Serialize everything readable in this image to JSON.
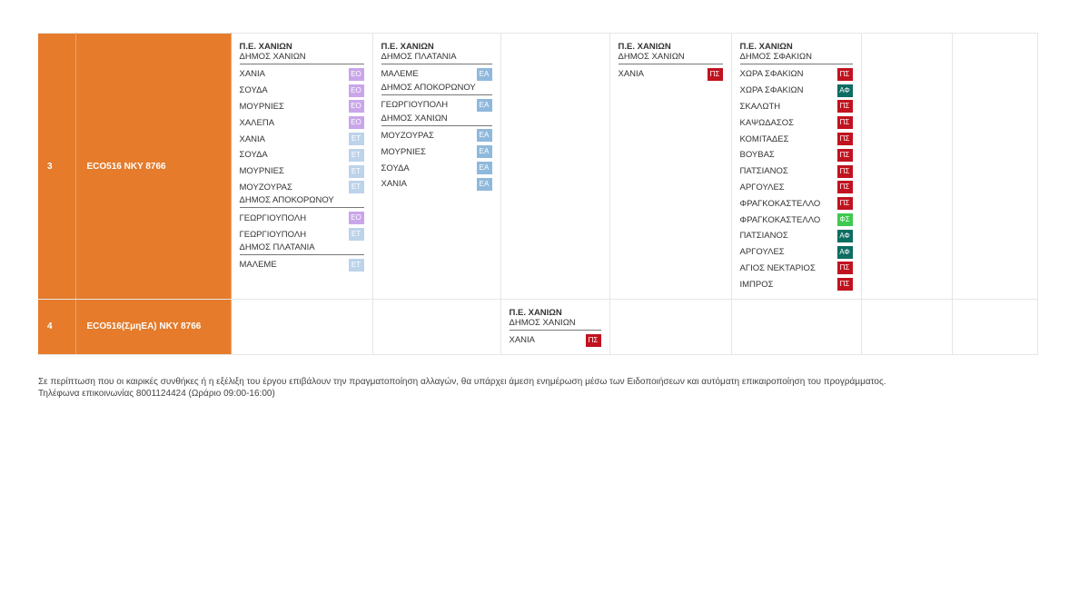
{
  "colors": {
    "row_header": "#e57b2b",
    "EO": "#c9a6ea",
    "ET": "#bcd3ea",
    "EA": "#8fb9dc",
    "PS": "#c1121f",
    "AF": "#0c6d62",
    "FS": "#3ec94f"
  },
  "rows": [
    {
      "num": "3",
      "code": "ECO516  NKY 8766",
      "cells": [
        {
          "pe": "Π.Ε. ΧΑΝΙΩΝ",
          "groups": [
            {
              "dimos": "ΔΗΜΟΣ ΧΑΝΙΩΝ",
              "items": [
                {
                  "name": "ΧΑΝΙΑ",
                  "badge": "ΕΟ"
                },
                {
                  "name": "ΣΟΥΔΑ",
                  "badge": "ΕΟ"
                },
                {
                  "name": "ΜΟΥΡΝΙΕΣ",
                  "badge": "ΕΟ"
                },
                {
                  "name": "ΧΑΛΕΠΑ",
                  "badge": "ΕΟ"
                },
                {
                  "name": "ΧΑΝΙΑ",
                  "badge": "ΕΤ"
                },
                {
                  "name": "ΣΟΥΔΑ",
                  "badge": "ΕΤ"
                },
                {
                  "name": "ΜΟΥΡΝΙΕΣ",
                  "badge": "ΕΤ"
                },
                {
                  "name": "ΜΟΥΖΟΥΡΑΣ",
                  "badge": "ΕΤ"
                }
              ]
            },
            {
              "dimos": "ΔΗΜΟΣ ΑΠΟΚΟΡΩΝΟΥ",
              "items": [
                {
                  "name": "ΓΕΩΡΓΙΟΥΠΟΛΗ",
                  "badge": "ΕΟ"
                },
                {
                  "name": "ΓΕΩΡΓΙΟΥΠΟΛΗ",
                  "badge": "ΕΤ"
                }
              ]
            },
            {
              "dimos": "ΔΗΜΟΣ ΠΛΑΤΑΝΙΑ",
              "items": [
                {
                  "name": "ΜΑΛΕΜΕ",
                  "badge": "ΕΤ"
                }
              ]
            }
          ]
        },
        {
          "pe": "Π.Ε. ΧΑΝΙΩΝ",
          "groups": [
            {
              "dimos": "ΔΗΜΟΣ ΠΛΑΤΑΝΙΑ",
              "items": [
                {
                  "name": "ΜΑΛΕΜΕ",
                  "badge": "ΕΑ"
                }
              ]
            },
            {
              "dimos": "ΔΗΜΟΣ ΑΠΟΚΟΡΩΝΟΥ",
              "items": [
                {
                  "name": "ΓΕΩΡΓΙΟΥΠΟΛΗ",
                  "badge": "ΕΑ"
                }
              ]
            },
            {
              "dimos": "ΔΗΜΟΣ ΧΑΝΙΩΝ",
              "items": [
                {
                  "name": "ΜΟΥΖΟΥΡΑΣ",
                  "badge": "ΕΑ"
                },
                {
                  "name": "ΜΟΥΡΝΙΕΣ",
                  "badge": "ΕΑ"
                },
                {
                  "name": "ΣΟΥΔΑ",
                  "badge": "ΕΑ"
                },
                {
                  "name": "ΧΑΝΙΑ",
                  "badge": "ΕΑ"
                }
              ]
            }
          ]
        },
        null,
        {
          "pe": "Π.Ε. ΧΑΝΙΩΝ",
          "groups": [
            {
              "dimos": "ΔΗΜΟΣ ΧΑΝΙΩΝ",
              "items": [
                {
                  "name": "ΧΑΝΙΑ",
                  "badge": "ΠΣ"
                }
              ]
            }
          ]
        },
        {
          "pe": "Π.Ε. ΧΑΝΙΩΝ",
          "groups": [
            {
              "dimos": "ΔΗΜΟΣ ΣΦΑΚΙΩΝ",
              "items": [
                {
                  "name": "ΧΩΡΑ ΣΦΑΚΙΩΝ",
                  "badge": "ΠΣ"
                },
                {
                  "name": "ΧΩΡΑ ΣΦΑΚΙΩΝ",
                  "badge": "ΑΦ"
                },
                {
                  "name": "ΣΚΑΛΩΤΗ",
                  "badge": "ΠΣ"
                },
                {
                  "name": "ΚΑΨΩΔΑΣΟΣ",
                  "badge": "ΠΣ"
                },
                {
                  "name": "ΚΟΜΙΤΑΔΕΣ",
                  "badge": "ΠΣ"
                },
                {
                  "name": "ΒΟΥΒΑΣ",
                  "badge": "ΠΣ"
                },
                {
                  "name": "ΠΑΤΣΙΑΝΟΣ",
                  "badge": "ΠΣ"
                },
                {
                  "name": "ΑΡΓΟΥΛΕΣ",
                  "badge": "ΠΣ"
                },
                {
                  "name": "ΦΡΑΓΚΟΚΑΣΤΕΛΛΟ",
                  "badge": "ΠΣ"
                },
                {
                  "name": "ΦΡΑΓΚΟΚΑΣΤΕΛΛΟ",
                  "badge": "ΦΣ"
                },
                {
                  "name": "ΠΑΤΣΙΑΝΟΣ",
                  "badge": "ΑΦ"
                },
                {
                  "name": "ΑΡΓΟΥΛΕΣ",
                  "badge": "ΑΦ"
                },
                {
                  "name": "ΑΓΙΟΣ ΝΕΚΤΑΡΙΟΣ",
                  "badge": "ΠΣ"
                },
                {
                  "name": "ΙΜΠΡΟΣ",
                  "badge": "ΠΣ"
                }
              ]
            }
          ]
        },
        null,
        null
      ]
    },
    {
      "num": "4",
      "code": "ECO516(ΣμηΕΑ)  NKY 8766",
      "cells": [
        null,
        null,
        {
          "pe": "Π.Ε. ΧΑΝΙΩΝ",
          "groups": [
            {
              "dimos": "ΔΗΜΟΣ ΧΑΝΙΩΝ",
              "items": [
                {
                  "name": "ΧΑΝΙΑ",
                  "badge": "ΠΣ"
                }
              ]
            }
          ]
        },
        null,
        null,
        null,
        null
      ]
    }
  ],
  "footer": {
    "line1": "Σε περίπτωση που οι καιρικές συνθήκες ή η εξέλιξη του έργου επιβάλουν την πραγματοποίηση αλλαγών, θα υπάρχει άμεση ενημέρωση μέσω των Ειδοποιήσεων και αυτόματη επικαιροποίηση του προγράμματος.",
    "line2": "Τηλέφωνα επικοινωνίας 8001124424 (Ωράριο 09:00-16:00)"
  }
}
